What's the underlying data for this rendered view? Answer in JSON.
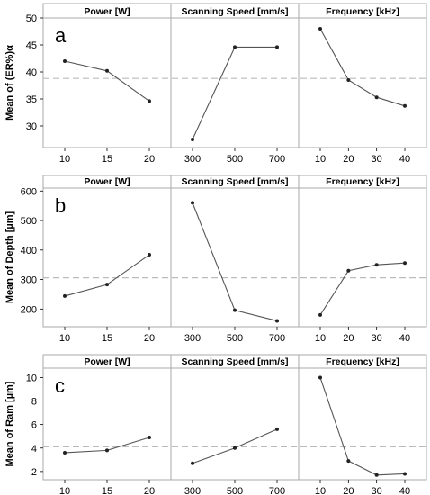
{
  "chart_data": [
    {
      "type": "line",
      "panel_letter": "a",
      "ylabel": "Mean of (ER%)α",
      "ylim": [
        26,
        50
      ],
      "yticks": [
        30,
        35,
        40,
        45,
        50
      ],
      "mean_line": 38.8,
      "facets": [
        {
          "title": "Power [W]",
          "categories": [
            "10",
            "15",
            "20"
          ],
          "values": [
            42,
            40.2,
            34.6
          ]
        },
        {
          "title": "Scanning Speed [mm/s]",
          "categories": [
            "300",
            "500",
            "700"
          ],
          "values": [
            27.5,
            44.6,
            44.6
          ]
        },
        {
          "title": "Frequency [kHz]",
          "categories": [
            "10",
            "20",
            "30",
            "40"
          ],
          "values": [
            48,
            38.5,
            35.3,
            33.7
          ]
        }
      ]
    },
    {
      "type": "line",
      "panel_letter": "b",
      "ylabel": "Mean of Depth [µm]",
      "ylim": [
        140,
        610
      ],
      "yticks": [
        200,
        300,
        400,
        500,
        600
      ],
      "mean_line": 306,
      "facets": [
        {
          "title": "Power [W]",
          "categories": [
            "10",
            "15",
            "20"
          ],
          "values": [
            244,
            283,
            384
          ]
        },
        {
          "title": "Scanning Speed [mm/s]",
          "categories": [
            "300",
            "500",
            "700"
          ],
          "values": [
            560,
            196,
            160
          ]
        },
        {
          "title": "Frequency [kHz]",
          "categories": [
            "10",
            "20",
            "30",
            "40"
          ],
          "values": [
            180,
            330,
            350,
            356
          ]
        }
      ]
    },
    {
      "type": "line",
      "panel_letter": "c",
      "ylabel": "Mean of Ram [µm]",
      "ylim": [
        1.3,
        10.8
      ],
      "yticks": [
        2,
        4,
        6,
        8,
        10
      ],
      "mean_line": 4.1,
      "facets": [
        {
          "title": "Power [W]",
          "categories": [
            "10",
            "15",
            "20"
          ],
          "values": [
            3.6,
            3.8,
            4.9
          ]
        },
        {
          "title": "Scanning Speed [mm/s]",
          "categories": [
            "300",
            "500",
            "700"
          ],
          "values": [
            2.7,
            4.0,
            5.6
          ]
        },
        {
          "title": "Frequency [kHz]",
          "categories": [
            "10",
            "20",
            "30",
            "40"
          ],
          "values": [
            10,
            2.9,
            1.7,
            1.8
          ]
        }
      ]
    }
  ],
  "colors": {
    "line": "#555555",
    "frame": "#aaaaaa",
    "mean_line": "#bbbbbb",
    "header_bg": "#ffffff"
  }
}
